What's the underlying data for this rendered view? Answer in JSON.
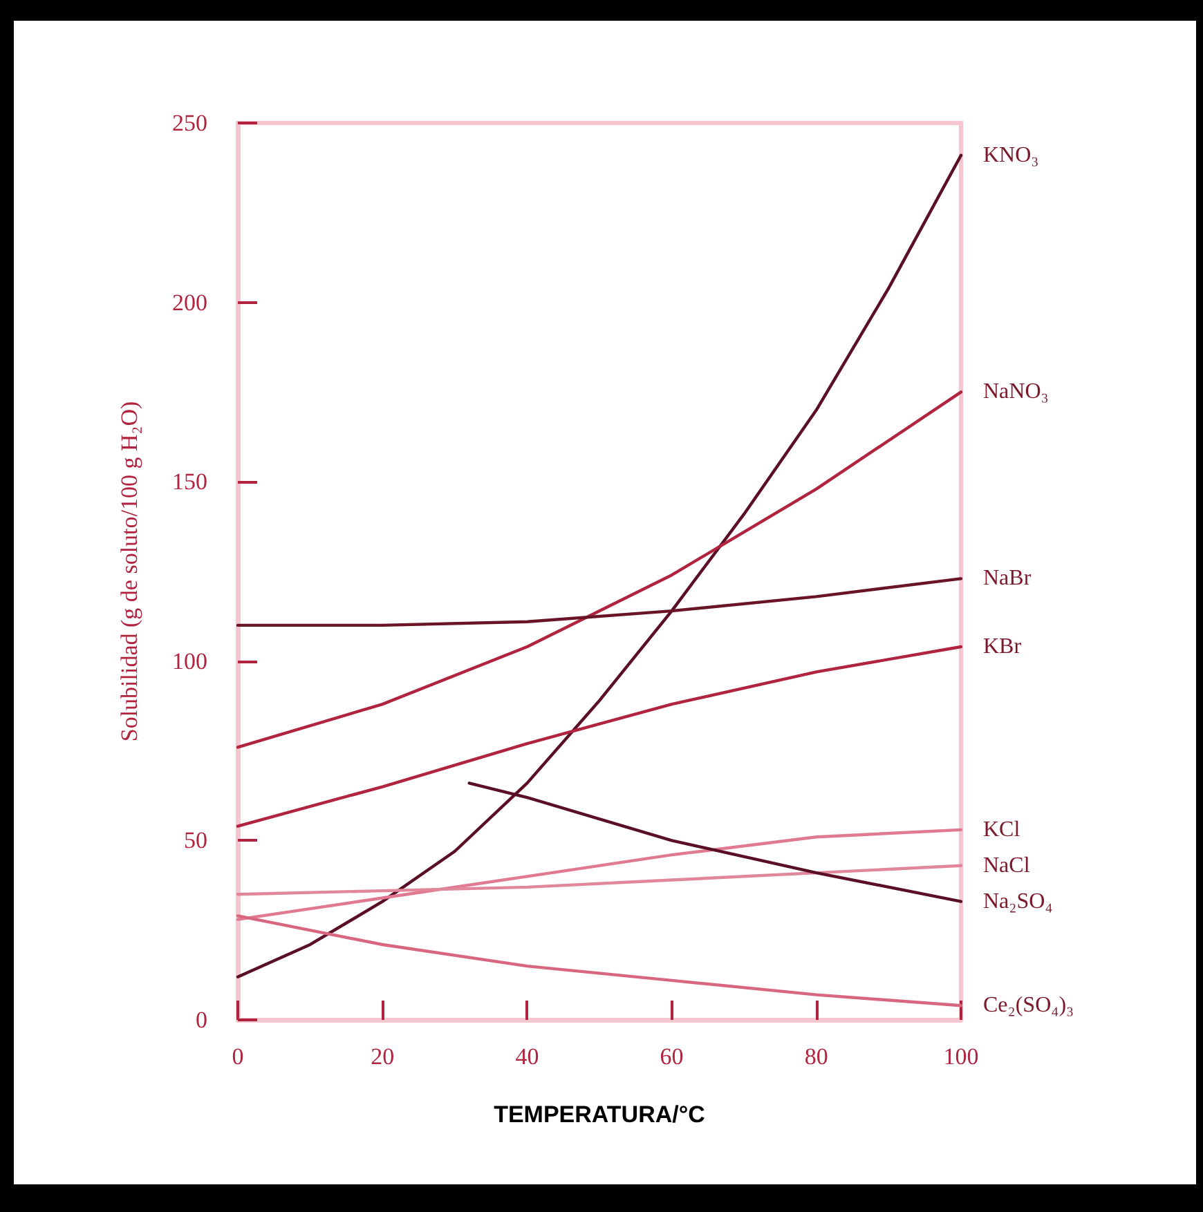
{
  "chart_data": {
    "type": "line",
    "xlabel": "TEMPERATURA/°C",
    "ylabel": "Solubilidad (g de soluto/100 g H₂O)",
    "xlim": [
      0,
      100
    ],
    "xticks": [
      0,
      20,
      40,
      60,
      80,
      100
    ],
    "ylim": [
      0,
      250
    ],
    "yticks": [
      0,
      50,
      100,
      150,
      200,
      250
    ],
    "grid": false,
    "legend": false,
    "marker": "none",
    "line_style": "solid",
    "series": [
      {
        "name": "KNO₃",
        "color": "#5a0f25",
        "x": [
          0,
          10,
          20,
          30,
          40,
          50,
          60,
          70,
          80,
          90,
          100
        ],
        "values": [
          12,
          21,
          33,
          47,
          66,
          89,
          114,
          141,
          170,
          204,
          241
        ]
      },
      {
        "name": "NaNO₃",
        "color": "#b0243f",
        "x": [
          0,
          20,
          40,
          60,
          80,
          100
        ],
        "values": [
          76,
          88,
          104,
          124,
          148,
          175
        ]
      },
      {
        "name": "NaBr",
        "color": "#6a1428",
        "x": [
          0,
          20,
          40,
          60,
          80,
          100
        ],
        "values": [
          110,
          110,
          111,
          114,
          118,
          123
        ]
      },
      {
        "name": "KBr",
        "color": "#b0243f",
        "x": [
          0,
          20,
          40,
          60,
          80,
          100
        ],
        "values": [
          54,
          65,
          77,
          88,
          97,
          104
        ]
      },
      {
        "name": "KCl",
        "color": "#e07a90",
        "x": [
          0,
          20,
          40,
          60,
          80,
          100
        ],
        "values": [
          28,
          34,
          40,
          46,
          51,
          53
        ]
      },
      {
        "name": "NaCl",
        "color": "#e0879b",
        "x": [
          0,
          20,
          40,
          60,
          80,
          100
        ],
        "values": [
          35,
          36,
          37,
          39,
          41,
          43
        ]
      },
      {
        "name": "Na₂SO₄",
        "color": "#5a0f25",
        "x": [
          32,
          40,
          60,
          80,
          100
        ],
        "values": [
          66,
          62,
          50,
          41,
          33
        ]
      },
      {
        "name": "Ce₂(SO₄)₃",
        "color": "#d9667f",
        "x": [
          0,
          20,
          40,
          60,
          80,
          100
        ],
        "values": [
          29,
          21,
          15,
          11,
          7,
          4
        ]
      }
    ]
  }
}
